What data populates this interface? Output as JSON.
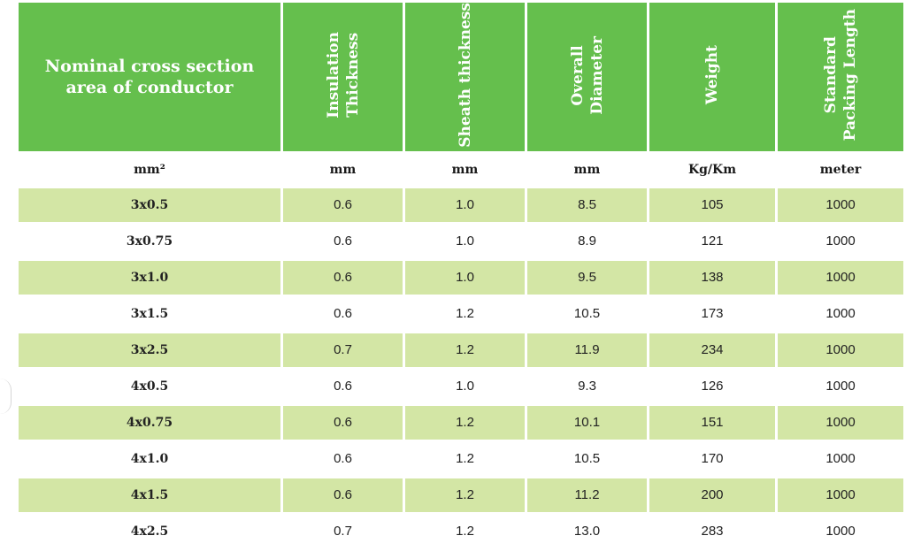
{
  "header": {
    "col0": "Nominal cross section area of conductor",
    "col1_line1": "Insulation",
    "col1_line2": "Thickness",
    "col2": "Sheath thickness",
    "col3_line1": "Overall",
    "col3_line2": "Diameter",
    "col4": "Weight",
    "col5_line1": "Standard",
    "col5_line2": "Packing Length"
  },
  "units": [
    "mm²",
    "mm",
    "mm",
    "mm",
    "Kg/Km",
    "meter"
  ],
  "rows": [
    [
      "3x0.5",
      "0.6",
      "1.0",
      "8.5",
      "105",
      "1000"
    ],
    [
      "3x0.75",
      "0.6",
      "1.0",
      "8.9",
      "121",
      "1000"
    ],
    [
      "3x1.0",
      "0.6",
      "1.0",
      "9.5",
      "138",
      "1000"
    ],
    [
      "3x1.5",
      "0.6",
      "1.2",
      "10.5",
      "173",
      "1000"
    ],
    [
      "3x2.5",
      "0.7",
      "1.2",
      "11.9",
      "234",
      "1000"
    ],
    [
      "4x0.5",
      "0.6",
      "1.0",
      "9.3",
      "126",
      "1000"
    ],
    [
      "4x0.75",
      "0.6",
      "1.2",
      "10.1",
      "151",
      "1000"
    ],
    [
      "4x1.0",
      "0.6",
      "1.2",
      "10.5",
      "170",
      "1000"
    ],
    [
      "4x1.5",
      "0.6",
      "1.2",
      "11.2",
      "200",
      "1000"
    ],
    [
      "4x2.5",
      "0.7",
      "1.2",
      "13.0",
      "283",
      "1000"
    ]
  ],
  "colors": {
    "header_green": "#65bf4d",
    "row_shade": "#d3e6a5",
    "row_plain": "#ffffff"
  }
}
